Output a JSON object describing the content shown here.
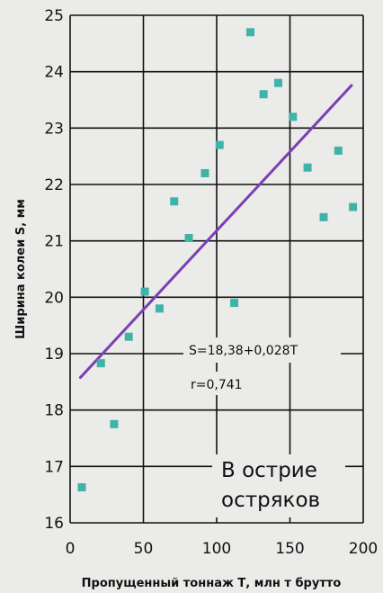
{
  "chart_data": {
    "type": "scatter",
    "title": "",
    "xlabel": "Пропущенный тоннаж Т, млн т брутто",
    "ylabel": "Ширина колеи S, мм",
    "xlim": [
      0,
      200
    ],
    "ylim": [
      16,
      25
    ],
    "xticks": [
      0,
      50,
      100,
      150,
      200
    ],
    "yticks": [
      16,
      17,
      18,
      19,
      20,
      21,
      22,
      23,
      24,
      25
    ],
    "grid": true,
    "point_color": "#3fb3a8",
    "line_color": "#7b3fb5",
    "points": [
      {
        "x": 8,
        "y": 16.63
      },
      {
        "x": 21,
        "y": 18.83
      },
      {
        "x": 30,
        "y": 17.75
      },
      {
        "x": 40,
        "y": 19.3
      },
      {
        "x": 51,
        "y": 20.1
      },
      {
        "x": 61,
        "y": 19.8
      },
      {
        "x": 71,
        "y": 21.7
      },
      {
        "x": 81,
        "y": 21.05
      },
      {
        "x": 92,
        "y": 22.2
      },
      {
        "x": 102,
        "y": 22.7
      },
      {
        "x": 112,
        "y": 19.9
      },
      {
        "x": 123,
        "y": 24.7
      },
      {
        "x": 132,
        "y": 23.6
      },
      {
        "x": 142,
        "y": 23.8
      },
      {
        "x": 152,
        "y": 23.2
      },
      {
        "x": 162,
        "y": 22.3
      },
      {
        "x": 173,
        "y": 21.42
      },
      {
        "x": 183,
        "y": 22.6
      },
      {
        "x": 193,
        "y": 21.6
      }
    ],
    "trendline": {
      "intercept": 18.38,
      "slope": 0.028,
      "x_range": [
        7,
        192
      ]
    },
    "annotations": {
      "equation": "S=18,38+0,028T",
      "correlation": "r=0,741",
      "label_line1": "В острие",
      "label_line2": "остряков"
    }
  }
}
